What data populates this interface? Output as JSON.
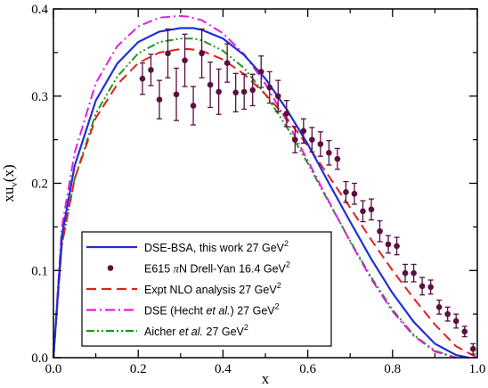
{
  "chart_data": {
    "type": "line",
    "xlabel": "x",
    "ylabel": "xu",
    "ylabel_sub": "v",
    "ylabel_tail": "(x)",
    "xlim": [
      0,
      1.0
    ],
    "ylim": [
      0,
      0.4
    ],
    "x_ticks": [
      "0.0",
      "0.2",
      "0.4",
      "0.6",
      "0.8",
      "1.0"
    ],
    "y_ticks": [
      "0.0",
      "0.1",
      "0.2",
      "0.3",
      "0.4"
    ],
    "grid": false,
    "legend_position": "bottom-left",
    "series": [
      {
        "name": "DSE-BSA, this work 27 GeV",
        "name_sup": "2",
        "style": "solid",
        "color": "#1f2fd6",
        "x": [
          0.0,
          0.02,
          0.05,
          0.1,
          0.15,
          0.2,
          0.25,
          0.3,
          0.33,
          0.35,
          0.4,
          0.45,
          0.5,
          0.55,
          0.6,
          0.65,
          0.7,
          0.75,
          0.8,
          0.85,
          0.9,
          0.95,
          0.98
        ],
        "y": [
          0.0,
          0.14,
          0.22,
          0.295,
          0.337,
          0.362,
          0.374,
          0.378,
          0.378,
          0.376,
          0.366,
          0.347,
          0.32,
          0.285,
          0.245,
          0.2,
          0.156,
          0.113,
          0.074,
          0.041,
          0.016,
          0.003,
          0.0
        ]
      },
      {
        "name": "E615  πN Drell-Yan 16.4 GeV",
        "name_sup": "2",
        "style": "points",
        "color": "#5a1040",
        "x": [
          0.21,
          0.23,
          0.25,
          0.27,
          0.29,
          0.31,
          0.33,
          0.35,
          0.37,
          0.39,
          0.41,
          0.43,
          0.45,
          0.47,
          0.49,
          0.51,
          0.53,
          0.55,
          0.57,
          0.59,
          0.61,
          0.63,
          0.65,
          0.67,
          0.69,
          0.71,
          0.73,
          0.75,
          0.77,
          0.79,
          0.81,
          0.83,
          0.85,
          0.87,
          0.89,
          0.91,
          0.93,
          0.95,
          0.97,
          0.99
        ],
        "y": [
          0.32,
          0.33,
          0.296,
          0.349,
          0.302,
          0.341,
          0.289,
          0.349,
          0.313,
          0.305,
          0.338,
          0.304,
          0.305,
          0.307,
          0.328,
          0.31,
          0.3,
          0.28,
          0.25,
          0.26,
          0.25,
          0.245,
          0.235,
          0.228,
          0.19,
          0.188,
          0.168,
          0.17,
          0.145,
          0.13,
          0.128,
          0.097,
          0.097,
          0.082,
          0.081,
          0.058,
          0.05,
          0.042,
          0.03,
          0.01
        ],
        "yerr": [
          0.018,
          0.018,
          0.022,
          0.028,
          0.03,
          0.03,
          0.022,
          0.028,
          0.026,
          0.026,
          0.022,
          0.022,
          0.02,
          0.018,
          0.018,
          0.018,
          0.018,
          0.015,
          0.015,
          0.014,
          0.014,
          0.014,
          0.014,
          0.012,
          0.012,
          0.012,
          0.012,
          0.012,
          0.012,
          0.01,
          0.01,
          0.01,
          0.01,
          0.01,
          0.008,
          0.008,
          0.008,
          0.008,
          0.006,
          0.006
        ]
      },
      {
        "name": "Expt NLO analysis 27 GeV",
        "name_sup": "2",
        "style": "dashed",
        "color": "#e02020",
        "x": [
          0.0,
          0.02,
          0.05,
          0.1,
          0.15,
          0.2,
          0.25,
          0.3,
          0.32,
          0.35,
          0.4,
          0.45,
          0.5,
          0.55,
          0.6,
          0.65,
          0.7,
          0.75,
          0.8,
          0.85,
          0.9,
          0.95,
          1.0
        ],
        "y": [
          0.0,
          0.13,
          0.205,
          0.275,
          0.313,
          0.338,
          0.35,
          0.354,
          0.354,
          0.352,
          0.342,
          0.325,
          0.302,
          0.275,
          0.243,
          0.208,
          0.172,
          0.135,
          0.1,
          0.068,
          0.038,
          0.013,
          0.0
        ]
      },
      {
        "name": "DSE (Hecht et al.) 27 GeV",
        "name_sup": "2",
        "style": "dash-dot",
        "color": "#e020e0",
        "x": [
          0.0,
          0.02,
          0.05,
          0.1,
          0.15,
          0.2,
          0.25,
          0.3,
          0.32,
          0.35,
          0.4,
          0.45,
          0.5,
          0.55,
          0.6,
          0.65,
          0.7,
          0.75,
          0.8,
          0.85,
          0.9,
          0.95
        ],
        "y": [
          0.0,
          0.15,
          0.235,
          0.315,
          0.357,
          0.38,
          0.39,
          0.392,
          0.391,
          0.387,
          0.372,
          0.348,
          0.314,
          0.272,
          0.226,
          0.179,
          0.133,
          0.09,
          0.053,
          0.025,
          0.007,
          0.0
        ]
      },
      {
        "name": "Aicher et al. 27 GeV",
        "name_sup": "2",
        "style": "dash-dot-dot",
        "color": "#1a9a1a",
        "x": [
          0.0,
          0.02,
          0.05,
          0.1,
          0.15,
          0.2,
          0.25,
          0.3,
          0.33,
          0.35,
          0.4,
          0.45,
          0.5,
          0.55,
          0.6,
          0.65,
          0.7,
          0.75,
          0.8,
          0.85,
          0.9,
          0.95
        ],
        "y": [
          0.0,
          0.13,
          0.205,
          0.28,
          0.322,
          0.349,
          0.362,
          0.366,
          0.366,
          0.364,
          0.352,
          0.332,
          0.302,
          0.265,
          0.223,
          0.178,
          0.134,
          0.092,
          0.055,
          0.026,
          0.008,
          0.0
        ]
      }
    ],
    "legend_entries": [
      [
        "DSE-BSA, this work  27 GeV"
      ],
      [
        "E615  ",
        "π",
        "N Drell-Yan 16.4 GeV"
      ],
      [
        "Expt NLO analysis 27 GeV"
      ],
      [
        "DSE (Hecht ",
        "et al.",
        ") 27 GeV"
      ],
      [
        "Aicher ",
        "et al.",
        " 27 GeV"
      ]
    ]
  }
}
